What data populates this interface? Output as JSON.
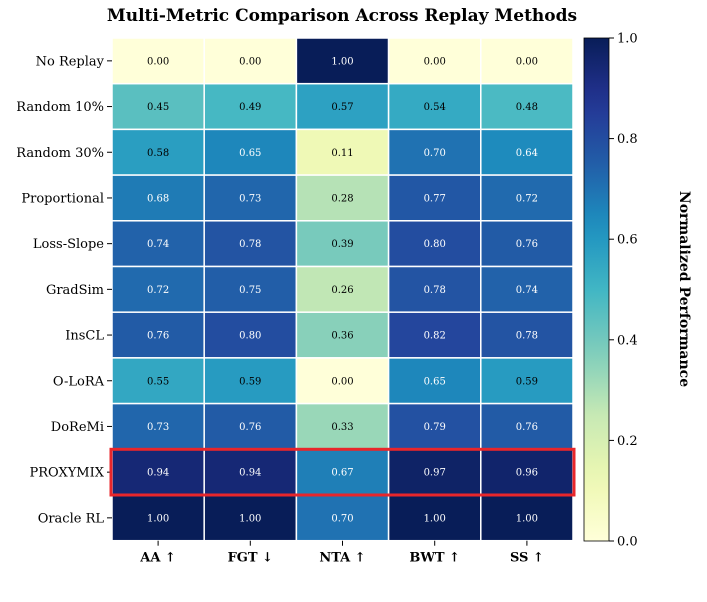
{
  "chart_data": {
    "type": "heatmap",
    "title": "Multi-Metric Comparison Across Replay Methods",
    "colorbar_label": "Normalized Performance",
    "colorbar_ticks": [
      "0.0",
      "0.2",
      "0.4",
      "0.6",
      "0.8",
      "1.0"
    ],
    "colorbar_range": [
      0.0,
      1.0
    ],
    "colormap": "YlGnBu",
    "columns": [
      "AA ↑",
      "FGT ↓",
      "NTA ↑",
      "BWT ↑",
      "SS ↑"
    ],
    "rows": [
      "No Replay",
      "Random 10%",
      "Random 30%",
      "Proportional",
      "Loss-Slope",
      "GradSim",
      "InsCL",
      "O-LoRA",
      "DoReMi",
      "PROXYMIX",
      "Oracle RL"
    ],
    "values": [
      [
        0.0,
        0.0,
        1.0,
        0.0,
        0.0
      ],
      [
        0.45,
        0.49,
        0.57,
        0.54,
        0.48
      ],
      [
        0.58,
        0.65,
        0.11,
        0.7,
        0.64
      ],
      [
        0.68,
        0.73,
        0.28,
        0.77,
        0.72
      ],
      [
        0.74,
        0.78,
        0.39,
        0.8,
        0.76
      ],
      [
        0.72,
        0.75,
        0.26,
        0.78,
        0.74
      ],
      [
        0.76,
        0.8,
        0.36,
        0.82,
        0.78
      ],
      [
        0.55,
        0.59,
        0.0,
        0.65,
        0.59
      ],
      [
        0.73,
        0.76,
        0.33,
        0.79,
        0.76
      ],
      [
        0.94,
        0.94,
        0.67,
        0.97,
        0.96
      ],
      [
        1.0,
        1.0,
        0.7,
        1.0,
        1.0
      ]
    ],
    "highlight_row": "PROXYMIX",
    "highlight_color": "#e8262b"
  }
}
